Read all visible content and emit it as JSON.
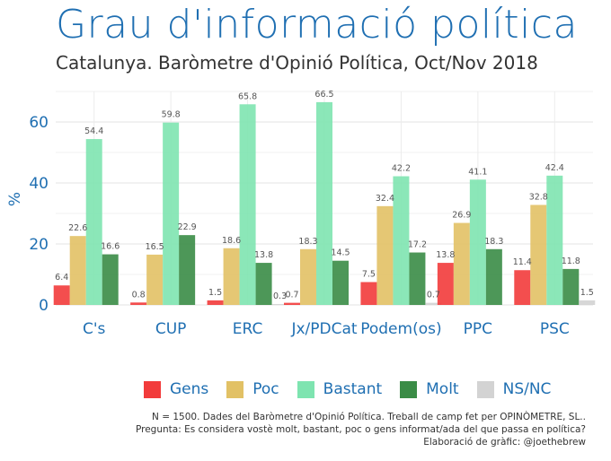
{
  "title": "Grau d'informació política",
  "subtitle": "Catalunya. Baròmetre d'Opinió Política, Oct/Nov 2018",
  "caption": {
    "line1": "N = 1500. Dades del Baròmetre d'Opinió Política. Treball de camp fet per OPINÒMETRE, SL..",
    "line2": "Pregunta: Es considera vostè molt, bastant, poc o gens informat/ada del que passa en política?",
    "line3": "Elaboració de gràfic: @joethebrew"
  },
  "chart_data": {
    "type": "bar",
    "ylabel": "%",
    "xlabel": "",
    "ylim": [
      0,
      70
    ],
    "yticks": [
      0,
      20,
      40,
      60
    ],
    "grid": true,
    "legend_position": "bottom",
    "categories": [
      "C's",
      "CUP",
      "ERC",
      "Jx/PDCat",
      "Podem(os)",
      "PPC",
      "PSC"
    ],
    "series": [
      {
        "name": "Gens",
        "color": "#f23b3b",
        "values": [
          6.4,
          0.8,
          1.5,
          0.7,
          7.5,
          13.8,
          11.4
        ]
      },
      {
        "name": "Poc",
        "color": "#e2c165",
        "values": [
          22.6,
          16.5,
          18.6,
          18.3,
          32.4,
          26.9,
          32.8
        ]
      },
      {
        "name": "Bastant",
        "color": "#7ee4b0",
        "values": [
          54.4,
          59.8,
          65.8,
          66.5,
          42.2,
          41.1,
          42.4
        ]
      },
      {
        "name": "Molt",
        "color": "#3a8c46",
        "values": [
          16.6,
          22.9,
          13.8,
          14.5,
          17.2,
          18.3,
          11.8
        ]
      },
      {
        "name": "NS/NC",
        "color": "#d3d3d3",
        "values": [
          null,
          null,
          0.3,
          null,
          0.7,
          null,
          1.5
        ]
      }
    ]
  }
}
